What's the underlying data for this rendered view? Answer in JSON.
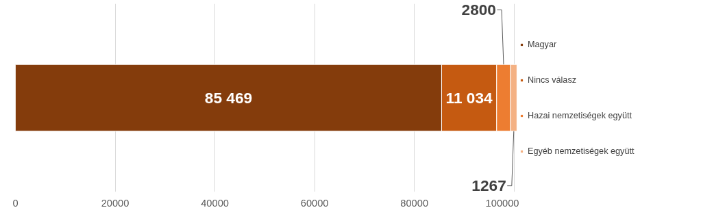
{
  "chart_data": {
    "type": "bar",
    "orientation": "horizontal",
    "stacked": true,
    "categories": [
      null
    ],
    "series": [
      {
        "name": "Magyar",
        "color": "#843c0c",
        "values": [
          85469
        ],
        "value_labels": [
          "85 469"
        ]
      },
      {
        "name": "Nincs válasz",
        "color": "#c55a11",
        "values": [
          11034
        ],
        "value_labels": [
          "11 034"
        ]
      },
      {
        "name": "Hazai nemzetiségek együtt",
        "color": "#ed7d31",
        "values": [
          2800
        ],
        "value_labels": [
          "2800"
        ]
      },
      {
        "name": "Egyéb nemzetiségek együtt",
        "color": "#f4b183",
        "values": [
          1267
        ],
        "value_labels": [
          "1267"
        ]
      }
    ],
    "xlim": [
      0,
      101000
    ],
    "xticks": [
      0,
      20000,
      40000,
      60000,
      80000,
      100000
    ],
    "grid": "x",
    "legend": "right"
  }
}
